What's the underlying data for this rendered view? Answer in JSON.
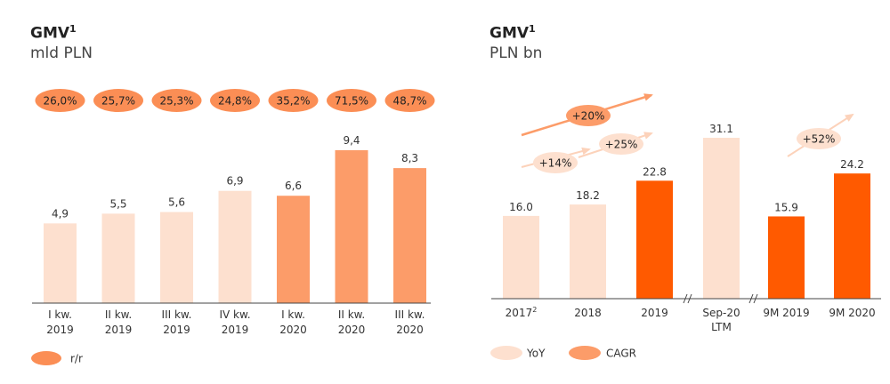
{
  "colors": {
    "light": "#fde0cf",
    "medium": "#fc9c69",
    "dark": "#ff5a00",
    "pill": "#fb8e55",
    "arrow_light": "#fcd2ba",
    "axis": "#444444"
  },
  "left": {
    "title": "GMV",
    "title_sup": "1",
    "subtitle": "mld PLN",
    "legend": [
      {
        "label": "r/r",
        "color": "#fb8e55"
      }
    ]
  },
  "right": {
    "title": "GMV",
    "title_sup": "1",
    "subtitle": "PLN bn",
    "legend": [
      {
        "label": "YoY",
        "color": "#fde0cf"
      },
      {
        "label": "CAGR",
        "color": "#fc9c69"
      }
    ],
    "growth_labels": [
      {
        "label": "+20%",
        "style": "medium"
      },
      {
        "label": "+14%",
        "style": "light"
      },
      {
        "label": "+25%",
        "style": "light"
      },
      {
        "label": "+52%",
        "style": "light"
      }
    ]
  },
  "chart_data": [
    {
      "type": "bar",
      "title": "GMV¹",
      "subtitle": "mld PLN",
      "categories": [
        "I kw.\n2019",
        "II kw.\n2019",
        "III kw.\n2019",
        "IV kw.\n2019",
        "I kw.\n2020",
        "II kw.\n2020",
        "III kw.\n2020"
      ],
      "values": [
        4.9,
        5.5,
        5.6,
        6.9,
        6.6,
        9.4,
        8.3
      ],
      "value_labels": [
        "4,9",
        "5,5",
        "5,6",
        "6,9",
        "6,6",
        "9,4",
        "8,3"
      ],
      "bar_styles": [
        "light",
        "light",
        "light",
        "light",
        "medium",
        "medium",
        "medium"
      ],
      "yoy_labels": [
        "26,0%",
        "25,7%",
        "25,3%",
        "24,8%",
        "35,2%",
        "71,5%",
        "48,7%"
      ],
      "ylim": [
        0,
        10
      ],
      "legend": [
        "r/r"
      ]
    },
    {
      "type": "bar",
      "title": "GMV¹",
      "subtitle": "PLN bn",
      "categories": [
        "2017²",
        "2018",
        "2019",
        "Sep-20\nLTM",
        "9M 2019",
        "9M 2020"
      ],
      "values": [
        16.0,
        18.2,
        22.8,
        31.1,
        15.9,
        24.2
      ],
      "value_labels": [
        "16.0",
        "18.2",
        "22.8",
        "31.1",
        "15.9",
        "24.2"
      ],
      "bar_styles": [
        "light",
        "light",
        "dark",
        "light",
        "dark",
        "dark"
      ],
      "axis_breaks_after": [
        "2019",
        "Sep-20\nLTM"
      ],
      "annotations": [
        "+20%",
        "+14%",
        "+25%",
        "+52%"
      ],
      "ylim": [
        0,
        34
      ],
      "legend": [
        "YoY",
        "CAGR"
      ]
    }
  ]
}
